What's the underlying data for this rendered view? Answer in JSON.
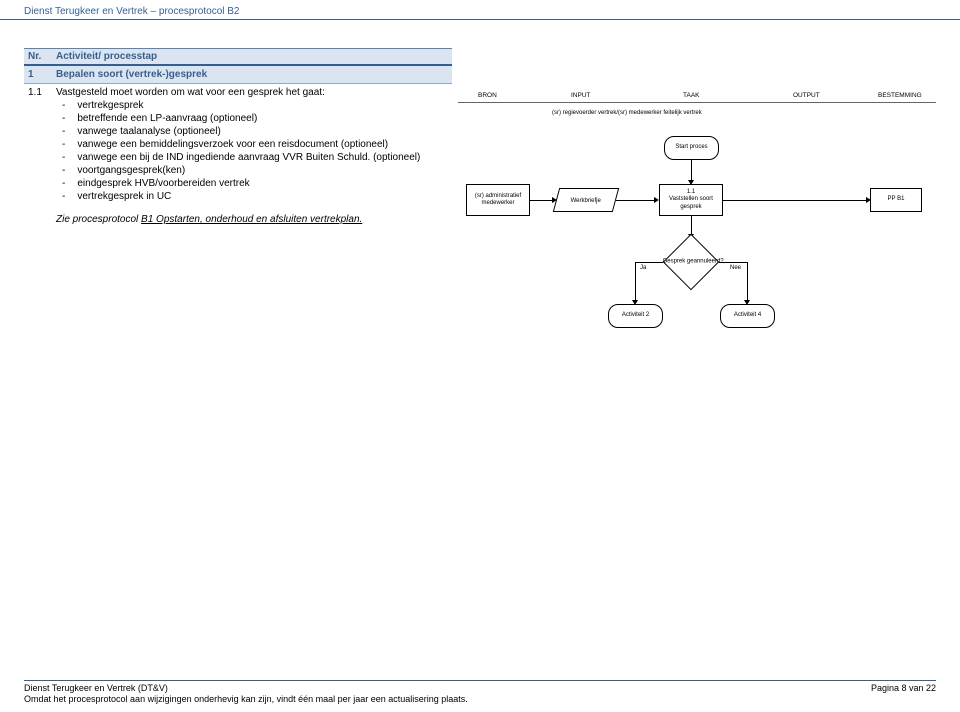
{
  "header": {
    "title": "Dienst Terugkeer en Vertrek – procesprotocol B2"
  },
  "table": {
    "columns": {
      "nr": "Nr.",
      "activiteit": "Activiteit/ processtap"
    },
    "row2": {
      "nr": "1",
      "title": "Bepalen soort (vertrek-)gesprek"
    },
    "row3": {
      "nr": "1.1",
      "intro": "Vastgesteld moet worden om wat voor een gesprek het gaat:",
      "bullets": [
        "vertrekgesprek",
        "betreffende een LP-aanvraag (optioneel)",
        "vanwege taalanalyse (optioneel)",
        "vanwege een bemiddelingsverzoek voor een reisdocument (optioneel)",
        "vanwege een bij de IND ingediende aanvraag VVR Buiten Schuld. (optioneel)",
        "voortgangsgesprek(ken)",
        "eindgesprek HVB/voorbereiden vertrek",
        "vertrekgesprek in UC"
      ],
      "see_pre": "Zie procesprotocol ",
      "see_link": "B1 Opstarten, onderhoud en afsluiten vertrekplan.",
      "see_post": ""
    }
  },
  "flowchart": {
    "cols": {
      "bron": "BRON",
      "input": "INPUT",
      "taak": "TAAK",
      "output": "OUTPUT",
      "bestemming": "BESTEMMING"
    },
    "swim": "(sr) regievoerder vertrek/(sr) medewerker feitelijk vertrek",
    "nodes": {
      "start": "Start proces",
      "admin": "(sr) administratief medewerker",
      "werk": "Werkbriefje",
      "vast": "1.1\nVaststellen soort gesprek",
      "pp": "PP B1",
      "annul": "Gesprek geannuleerd?",
      "act2": "Activiteit 2",
      "act4": "Activiteit 4",
      "ja": "Ja",
      "nee": "Nee"
    }
  },
  "footer": {
    "line1": "Dienst Terugkeer en Vertrek (DT&V)",
    "line2": "Omdat het procesprotocol aan wijzigingen onderhevig kan zijn, vindt één maal per jaar een actualisering plaats.",
    "page": "Pagina 8 van 22"
  }
}
